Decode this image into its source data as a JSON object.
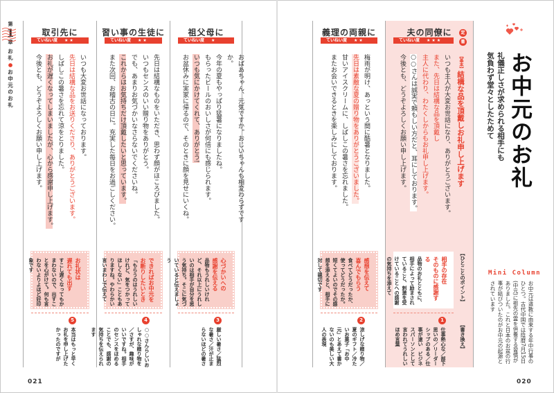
{
  "chapter": {
    "pre": "第",
    "num": "1",
    "post": "章",
    "section_a": "お礼",
    "section_dot": "●",
    "section_b": "お中元のお礼"
  },
  "badge_label": "ていねい度",
  "header": {
    "title": "お中元のお礼",
    "subtitle": [
      "礼儀正しさが求められる相手にも",
      "気負わず堂々としたためて"
    ]
  },
  "mini_column": {
    "heading": "Mini Column",
    "text": "お中元は道教に由来する年中行事のひとつ。古代中国では陰暦7月15日(中元)に祖先の霊を供養する習慣がありました。これと日本のお盆の行事が結びついたのがお中元の起源とされています"
  },
  "page_numbers": {
    "left": "021",
    "right": "020"
  },
  "colors": {
    "accent": "#e8412f",
    "highlight": "#f8c9c3",
    "pink_bg": "#fbe0dd"
  },
  "columns": [
    {
      "title": "取引先に",
      "stars": "★★",
      "lines": [
        [
          {
            "text": "いつも大変お世話になっております。",
            "style": "normal"
          }
        ],
        [
          {
            "text": "先日は結構な品をお送りくださり、ありがとうございます。",
            "style": "red"
          }
        ],
        [
          {
            "text": "しばしこの暑さを忘れて涼をとりました。",
            "style": "normal"
          }
        ],
        [
          {
            "text": "お礼が遅くなってしまいましたが、心から感謝申し上げます。",
            "style": "hl"
          }
        ],
        [
          {
            "text": "今後とも、どうぞよろしくお願い申し上げます。",
            "style": "normal"
          }
        ]
      ],
      "tip": {
        "title": [
          "お礼状は",
          "遅れても出す"
        ],
        "body": "すこし遅くなってもかまわないので、出すことを心がけて。何も言わないよりよほど好印象です"
      },
      "note": {
        "num": "5",
        "text": "本当はもっと早くお礼を申し上げたかったのですが"
      }
    },
    {
      "title": "習い事の生徒に",
      "stars": "★★",
      "lines": [
        [
          {
            "text": "先日は結構なものをいただき、思わず顔がほころびました。",
            "style": "normal"
          }
        ],
        [
          {
            "text": "いつもセンスのいい贈り物をありがとう。",
            "style": "normal"
          }
        ],
        [
          {
            "text": "でも、あまりお気づかいなさらないでくださいね。",
            "style": "normal"
          }
        ],
        [
          {
            "text": "これからはお気持ちだけ頂戴したいと思っています。",
            "style": "hl"
          }
        ],
        [
          {
            "text": "また次回、お稽古の日に。充実した毎日をお過ごしください。",
            "style": "normal"
          }
        ]
      ],
      "tip": {
        "title": [
          "できればお中元を",
          "お断りしたいとき"
        ],
        "body": "「もらうのはうれしいけれど、気をつかってほしくない」こともありますね。やわらかい言いまわしで伝えて"
      },
      "note": {
        "num": "4",
        "text": "○○さんらしいおしゃれな贈り物を／さすが、趣味がいいですね。相手のセンスをほめることでも、感謝の気持ちを伝えられます"
      }
    },
    {
      "title": "祖父母に",
      "stars": "★",
      "lines": [
        [
          {
            "text": "おばあちゃん、元気ですか。おじいちゃんも相変わらずですか。",
            "style": "normal"
          }
        ],
        [
          {
            "text": "今年の夏もやっぱり猛暑になりましたね。",
            "style": "normal"
          }
        ],
        [
          {
            "text": "もらったビールのおいしさが何倍にも感じられます。",
            "style": "normal"
          }
        ],
        [
          {
            "text": "いつも気にかけてくれて、ありがとう!",
            "style": "hl"
          }
        ],
        [
          {
            "text": "お盆休みに実家に帰るので、そのときに顔を見せにいくね。",
            "style": "normal"
          }
        ]
      ],
      "tip": {
        "title": [
          "心づかいへの",
          "感謝を伝える"
        ],
        "body": "品物もうれしいけれど、それ以上にうれしいのは相手が自分を思う気持ち。そこに気づいていると伝えましょう"
      },
      "note": {
        "num": "3",
        "text": "厳しい暑さ／猛烈な暑さ／汗が止まらないほどの暑さ"
      }
    },
    {
      "title": "義理の両親に",
      "stars": "★★",
      "lines": [
        [
          {
            "text": "梅雨が明け、あっという間に酷暑となりました。",
            "style": "normal"
          }
        ],
        [
          {
            "text": "先日は素敵な夏の贈り物をありがとうございました。",
            "style": "redhl"
          }
        ],
        [
          {
            "text": "甘いアイスクリームに、しばしこの暑さを忘れました。",
            "style": "normal"
          }
        ],
        [
          {
            "text": "またお会いできるときを楽しみにしております。",
            "style": "normal"
          }
        ]
      ],
      "tip": {
        "title": [
          "感想を伝えて",
          "喜んでもらう"
        ],
        "body": "食べてどうだったか、使ってどうだったか。短くてよいのでその感想を添えると、相手に対して親切です"
      },
      "note": {
        "num": "2",
        "text": "涼しげな贈り物／夏のギフト／冷たいお菓子「お中元」とあえて書かないのも美しい大人の表現"
      }
    },
    {
      "title": "夫の同僚に",
      "stars": "★★★",
      "standard_badge": [
        "定",
        "番"
      ],
      "main_tag": "【基本】",
      "main_line": "結構な品を頂戴しお礼申し上げます",
      "lines": [
        [
          {
            "text": "いつも主人が大変お世話になり、ありがとうございます。",
            "style": "normal"
          }
        ],
        [
          {
            "text": "また、先日は結構な品を頂戴し",
            "style": "red"
          }
        ],
        [
          {
            "text": "主人に代わり、わたくしからもお礼申し上げます。",
            "style": "red"
          }
        ],
        [
          {
            "text": "○○さんは誠実で頼もしい方だと、耳にしております。",
            "style": "white"
          }
        ],
        [
          {
            "text": "今後とも、どうぞよろしくお願い申し上げます。",
            "style": "normal"
          }
        ]
      ],
      "point_label": "【ひとことのポイント】",
      "rewrite_label": "【書き換え】",
      "tip": {
        "title": [
          "相手の存在",
          "そのものに感謝する"
        ],
        "body": "品物のお礼とともに、相手によって励まされていること、刺激を受けていることへの感謝の気持ちを添えて"
      },
      "note": {
        "num": "1",
        "text": "仕事熱心な／部下思いの／リーダーシップのある／仕事が速い　ビジネスパーソンとして言われてうれしいほめ言葉"
      }
    }
  ]
}
